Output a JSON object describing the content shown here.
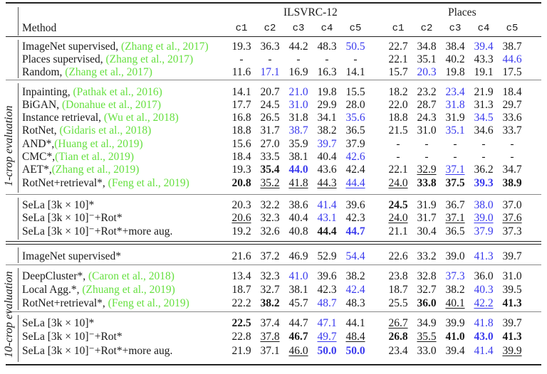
{
  "header": {
    "method_label": "Method",
    "groups": [
      "ILSVRC-12",
      "Places"
    ],
    "columns": [
      "c1",
      "c2",
      "c3",
      "c4",
      "c5",
      "c1",
      "c2",
      "c3",
      "c4",
      "c5"
    ]
  },
  "sections": {
    "one_crop_label": "1-crop evaluation",
    "ten_crop_label": "10-crop evaluation"
  },
  "colors": {
    "citation": "#66e040",
    "best_per_row": "#3a3aee",
    "text": "#1a1a1a"
  },
  "rows": [
    {
      "method": "ImageNet supervised, ",
      "cite": "(Zhang et al., 2017)",
      "cells": [
        "19.3",
        "36.3",
        "44.2",
        "48.3",
        "50.5",
        "22.7",
        "34.8",
        "38.4",
        "39.4",
        "38.7"
      ],
      "style": [
        "",
        "",
        "",
        "",
        "blue",
        "",
        "",
        "",
        "blue",
        ""
      ]
    },
    {
      "method": "Places supervised, ",
      "cite": "(Zhang et al., 2017)",
      "cells": [
        "-",
        "-",
        "-",
        "-",
        "-",
        "22.1",
        "35.1",
        "40.2",
        "43.3",
        "44.6"
      ],
      "style": [
        "",
        "",
        "",
        "",
        "",
        "",
        "",
        "",
        "",
        "blue"
      ]
    },
    {
      "method": "Random, ",
      "cite": "(Zhang et al., 2017)",
      "cells": [
        "11.6",
        "17.1",
        "16.9",
        "16.3",
        "14.1",
        "15.7",
        "20.3",
        "19.8",
        "19.1",
        "17.5"
      ],
      "style": [
        "",
        "blue",
        "",
        "",
        "",
        "",
        "blue",
        "",
        "",
        ""
      ]
    },
    {
      "method": "Inpainting, ",
      "cite": "(Pathak et al., 2016)",
      "cells": [
        "14.1",
        "20.7",
        "21.0",
        "19.8",
        "15.5",
        "18.2",
        "23.2",
        "23.4",
        "21.9",
        "18.4"
      ],
      "style": [
        "",
        "",
        "blue",
        "",
        "",
        "",
        "",
        "blue",
        "",
        ""
      ]
    },
    {
      "method": "BiGAN, ",
      "cite": "(Donahue et al., 2017)",
      "cells": [
        "17.7",
        "24.5",
        "31.0",
        "29.9",
        "28.0",
        "22.0",
        "28.7",
        "31.8",
        "31.3",
        "29.7"
      ],
      "style": [
        "",
        "",
        "blue",
        "",
        "",
        "",
        "",
        "blue",
        "",
        ""
      ]
    },
    {
      "method": "Instance retrieval, ",
      "cite": "(Wu et al., 2018)",
      "cells": [
        "16.8",
        "26.5",
        "31.8",
        "34.1",
        "35.6",
        "18.8",
        "24.3",
        "31.9",
        "34.5",
        "33.6"
      ],
      "style": [
        "",
        "",
        "",
        "",
        "blue",
        "",
        "",
        "",
        "blue",
        ""
      ]
    },
    {
      "method": "RotNet, ",
      "cite": "(Gidaris et al., 2018)",
      "cells": [
        "18.8",
        "31.7",
        "38.7",
        "38.2",
        "36.5",
        "21.5",
        "31.0",
        "35.1",
        "34.6",
        "33.7"
      ],
      "style": [
        "",
        "",
        "blue",
        "",
        "",
        "",
        "",
        "blue",
        "",
        ""
      ]
    },
    {
      "method": "AND*,",
      "cite": "(Huang et al., 2019)",
      "cells": [
        "15.6",
        "27.0",
        "35.9",
        "39.7",
        "37.9",
        "-",
        "-",
        "-",
        "-",
        "-"
      ],
      "style": [
        "",
        "",
        "",
        "blue",
        "",
        "",
        "",
        "",
        "",
        ""
      ]
    },
    {
      "method": "CMC*,",
      "cite": "(Tian et al., 2019)",
      "cells": [
        "18.4",
        "33.5",
        "38.1",
        "40.4",
        "42.6",
        "-",
        "-",
        "-",
        "-",
        "-"
      ],
      "style": [
        "",
        "",
        "",
        "",
        "blue",
        "",
        "",
        "",
        "",
        ""
      ]
    },
    {
      "method": "AET*,",
      "cite": "(Zhang et al., 2019)",
      "cells": [
        "19.3",
        "35.4",
        "44.0",
        "43.6",
        "42.4",
        "22.1",
        "32.9",
        "37.1",
        "36.2",
        "34.7"
      ],
      "style": [
        "",
        "b",
        "blue b",
        "",
        "",
        "",
        "u",
        "blue u",
        "",
        ""
      ]
    },
    {
      "method": "RotNet+retrieval*, ",
      "cite": "(Feng et al., 2019)",
      "cells": [
        "20.8",
        "35.2",
        "41.8",
        "44.3",
        "44.4",
        "24.0",
        "33.8",
        "37.5",
        "39.3",
        "38.9"
      ],
      "style": [
        "b",
        "u",
        "u",
        "u",
        "blue u",
        "u",
        "b",
        "b",
        "blue b",
        "b"
      ]
    },
    {
      "method": "SeLa [3k × 10]*",
      "cite": "",
      "cells": [
        "20.3",
        "32.2",
        "38.6",
        "41.4",
        "39.6",
        "24.5",
        "31.9",
        "36.7",
        "38.0",
        "37.0"
      ],
      "style": [
        "",
        "",
        "",
        "blue",
        "",
        "b",
        "",
        "",
        "blue",
        ""
      ]
    },
    {
      "method": "SeLa [3k × 10]⁻+Rot*",
      "cite": "",
      "cells": [
        "20.6",
        "32.3",
        "40.4",
        "43.1",
        "42.3",
        "24.0",
        "31.7",
        "37.1",
        "39.0",
        "37.6"
      ],
      "style": [
        "u",
        "",
        "",
        "blue",
        "",
        "u",
        "",
        "u",
        "blue u",
        "u"
      ]
    },
    {
      "method": "SeLa [3k × 10]⁻+Rot*+more aug.",
      "cite": "",
      "cells": [
        "19.2",
        "32.6",
        "40.8",
        "44.4",
        "44.7",
        "21.1",
        "30.4",
        "36.5",
        "37.9",
        "37.3"
      ],
      "style": [
        "",
        "",
        "",
        "b",
        "blue b",
        "",
        "",
        "",
        "blue",
        ""
      ]
    },
    {
      "method": "ImageNet supervised*",
      "cite": "",
      "cells": [
        "21.6",
        "37.2",
        "46.9",
        "52.9",
        "54.4",
        "22.6",
        "33.2",
        "39.0",
        "41.3",
        "39.7"
      ],
      "style": [
        "",
        "",
        "",
        "",
        "blue",
        "",
        "",
        "",
        "blue",
        ""
      ]
    },
    {
      "method": "DeepCluster*, ",
      "cite": "(Caron et al., 2018)",
      "cells": [
        "13.4",
        "32.3",
        "41.0",
        "39.6",
        "38.2",
        "23.8",
        "32.8",
        "37.3",
        "36.0",
        "31.0"
      ],
      "style": [
        "",
        "",
        "blue",
        "",
        "",
        "",
        "",
        "blue",
        "",
        ""
      ]
    },
    {
      "method": "Local Agg.*, ",
      "cite": "(Zhuang et al., 2019)",
      "cells": [
        "18.7",
        "32.7",
        "38.1",
        "42.3",
        "42.4",
        "18.7",
        "32.7",
        "38.2",
        "40.3",
        "39.5"
      ],
      "style": [
        "",
        "",
        "",
        "",
        "blue",
        "",
        "",
        "",
        "blue",
        ""
      ]
    },
    {
      "method": "RotNet+retrieval*, ",
      "cite": "(Feng et al., 2019)",
      "cells": [
        "22.2",
        "38.2",
        "45.7",
        "48.7",
        "48.3",
        "25.5",
        "36.0",
        "40.1",
        "42.2",
        "41.3"
      ],
      "style": [
        "",
        "b",
        "",
        "blue",
        "",
        "",
        "b",
        "u",
        "blue u",
        "b"
      ]
    },
    {
      "method": "SeLa [3k × 10]*",
      "cite": "",
      "cells": [
        "22.5",
        "37.4",
        "44.7",
        "47.1",
        "44.1",
        "26.7",
        "34.9",
        "39.9",
        "41.8",
        "39.7"
      ],
      "style": [
        "b",
        "",
        "",
        "blue",
        "",
        "u",
        "",
        "",
        "blue",
        ""
      ]
    },
    {
      "method": "SeLa [3k × 10]⁻+Rot*",
      "cite": "",
      "cells": [
        "22.8",
        "37.8",
        "46.7",
        "49.7",
        "48.4",
        "26.8",
        "35.5",
        "41.0",
        "43.0",
        "41.3"
      ],
      "style": [
        "",
        "u",
        "b",
        "blue u",
        "u",
        "b",
        "u",
        "b",
        "blue b",
        "b"
      ]
    },
    {
      "method": "SeLa [3k × 10]⁻+Rot*+more aug.",
      "cite": "",
      "cells": [
        "21.9",
        "37.1",
        "46.0",
        "50.0",
        "50.0",
        "23.4",
        "33.0",
        "39.4",
        "41.4",
        "39.9"
      ],
      "style": [
        "",
        "",
        "u",
        "blue b",
        "blue b",
        "",
        "",
        "",
        "blue",
        "u"
      ]
    }
  ]
}
